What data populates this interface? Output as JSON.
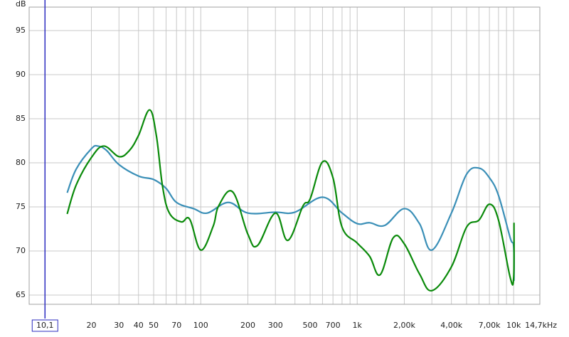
{
  "chart_data": {
    "type": "line",
    "y_label": "dB",
    "xscale": "log",
    "xlim": [
      8,
      14700
    ],
    "ylim": [
      63.95,
      97.66
    ],
    "yticks": [
      65,
      70,
      75,
      80,
      85,
      90,
      95
    ],
    "xticks": [
      20,
      30,
      40,
      50,
      70,
      100,
      200,
      300,
      500,
      700,
      {
        "value": 1000,
        "label": "1k"
      },
      {
        "value": 2000,
        "label": "2,00k"
      },
      {
        "value": 4000,
        "label": "4,00k"
      },
      {
        "value": 7000,
        "label": "7,00k"
      },
      {
        "value": 10000,
        "label": "10k"
      },
      {
        "value": 14700,
        "label": "14,7kHz"
      }
    ],
    "minor_xticks": [
      60,
      80,
      90,
      400,
      600,
      800,
      900,
      3000,
      5000,
      6000,
      8000,
      9000
    ],
    "grid": true,
    "cursor": {
      "value": 10.1,
      "label": "10,1",
      "color": "#2b2bbf"
    },
    "series": [
      {
        "color": "#3a8fb7",
        "x": [
          14,
          16,
          20,
          22,
          25,
          30,
          40,
          50,
          60,
          70,
          90,
          110,
          150,
          200,
          300,
          400,
          600,
          800,
          1000,
          1200,
          1500,
          2000,
          2500,
          3000,
          4000,
          5000,
          6000,
          7000,
          8000,
          9500,
          10000,
          10050
        ],
        "values": [
          76.6,
          79.3,
          81.6,
          81.9,
          81.4,
          79.8,
          78.5,
          78.1,
          77.1,
          75.5,
          74.8,
          74.3,
          75.5,
          74.3,
          74.4,
          74.4,
          76.1,
          74.3,
          73.1,
          73.2,
          72.9,
          74.8,
          73.1,
          70.1,
          74.3,
          78.7,
          79.4,
          78.3,
          76.3,
          71.5,
          70.5,
          66.6
        ]
      },
      {
        "color": "#0a8a0a",
        "x": [
          14,
          16,
          20,
          24,
          30,
          35,
          40,
          47,
          52,
          57,
          63,
          75,
          85,
          100,
          120,
          130,
          160,
          200,
          230,
          300,
          360,
          450,
          500,
          600,
          700,
          800,
          1000,
          1200,
          1400,
          1700,
          2000,
          2500,
          3000,
          4000,
          5000,
          6000,
          7000,
          8000,
          9500,
          10000,
          10050
        ],
        "values": [
          74.2,
          77.5,
          80.6,
          81.9,
          80.7,
          81.4,
          83.1,
          86.0,
          83.1,
          77.3,
          74.3,
          73.3,
          73.6,
          70.1,
          72.8,
          75.1,
          76.7,
          71.9,
          70.6,
          74.3,
          71.2,
          75.1,
          75.9,
          80.1,
          78.3,
          72.7,
          70.9,
          69.4,
          67.3,
          71.5,
          70.8,
          67.4,
          65.5,
          68.2,
          72.7,
          73.5,
          75.3,
          73.5,
          67.0,
          67.0,
          73.2
        ]
      }
    ]
  }
}
